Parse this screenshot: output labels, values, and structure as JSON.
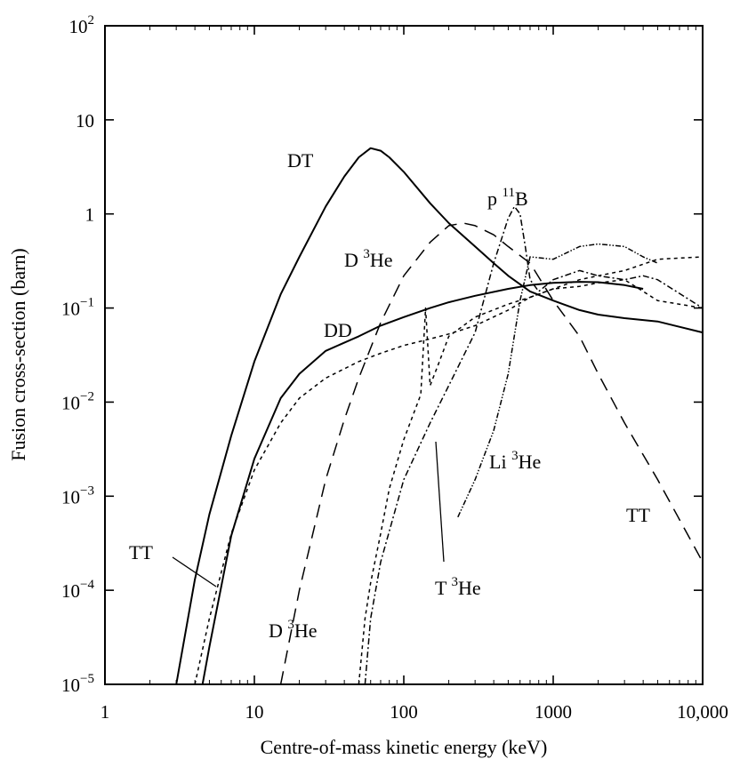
{
  "chart_data": {
    "type": "line",
    "xlabel": "Centre-of-mass kinetic energy (keV)",
    "ylabel": "Fusion cross-section (barn)",
    "xscale": "log",
    "yscale": "log",
    "xlim": [
      1,
      10000
    ],
    "ylim": [
      1e-05,
      100
    ],
    "grid": false,
    "x_ticks": [
      {
        "value": 1,
        "label": "1"
      },
      {
        "value": 10,
        "label": "10"
      },
      {
        "value": 100,
        "label": "100"
      },
      {
        "value": 1000,
        "label": "1000"
      },
      {
        "value": 10000,
        "label": "10,000"
      }
    ],
    "y_ticks": [
      {
        "value": 1e-05,
        "base": "10",
        "exp": "−5"
      },
      {
        "value": 0.0001,
        "base": "10",
        "exp": "−4"
      },
      {
        "value": 0.001,
        "base": "10",
        "exp": "−3"
      },
      {
        "value": 0.01,
        "base": "10",
        "exp": "−2"
      },
      {
        "value": 0.1,
        "base": "10",
        "exp": "−1"
      },
      {
        "value": 1,
        "base": "1",
        "exp": ""
      },
      {
        "value": 10,
        "base": "10",
        "exp": ""
      },
      {
        "value": 100,
        "base": "10",
        "exp": "2"
      }
    ],
    "series": [
      {
        "name": "DT",
        "style": "solid",
        "x": [
          3,
          4,
          5,
          7,
          10,
          15,
          20,
          30,
          40,
          50,
          60,
          70,
          80,
          100,
          150,
          200,
          300,
          400,
          500,
          700,
          1000,
          1500,
          2000,
          3000,
          5000,
          10000
        ],
        "y": [
          1e-05,
          0.00013,
          0.00064,
          0.0044,
          0.027,
          0.14,
          0.35,
          1.2,
          2.5,
          4.0,
          5.0,
          4.7,
          4.0,
          2.8,
          1.3,
          0.8,
          0.45,
          0.3,
          0.22,
          0.15,
          0.12,
          0.095,
          0.085,
          0.078,
          0.072,
          0.055
        ]
      },
      {
        "name": "DD",
        "style": "solid",
        "x": [
          4.5,
          5,
          7,
          10,
          15,
          20,
          30,
          50,
          70,
          100,
          150,
          200,
          300,
          500,
          700,
          1000,
          1500,
          2000,
          3000,
          4000
        ],
        "y": [
          1e-05,
          2.5e-05,
          0.00038,
          0.0025,
          0.011,
          0.02,
          0.035,
          0.05,
          0.065,
          0.08,
          0.1,
          0.115,
          0.135,
          0.16,
          0.175,
          0.185,
          0.19,
          0.188,
          0.175,
          0.16
        ]
      },
      {
        "name": "TT",
        "style": "short-dash",
        "x": [
          4,
          5,
          7,
          10,
          15,
          20,
          30,
          50,
          70,
          100,
          150,
          200,
          300,
          500,
          700,
          1000,
          1500,
          2000,
          3000,
          5000,
          10000
        ],
        "y": [
          1e-05,
          5e-05,
          0.0004,
          0.0019,
          0.006,
          0.011,
          0.018,
          0.027,
          0.033,
          0.04,
          0.047,
          0.053,
          0.065,
          0.095,
          0.13,
          0.16,
          0.2,
          0.22,
          0.25,
          0.33,
          0.35
        ]
      },
      {
        "name": "D 3He",
        "style": "long-dash",
        "x": [
          15,
          20,
          30,
          40,
          50,
          70,
          100,
          150,
          200,
          250,
          300,
          400,
          500,
          700,
          1000,
          1500,
          2000,
          3000,
          5000,
          10000
        ],
        "y": [
          1e-05,
          0.0001,
          0.0015,
          0.0065,
          0.018,
          0.07,
          0.22,
          0.5,
          0.75,
          0.8,
          0.75,
          0.6,
          0.45,
          0.3,
          0.12,
          0.05,
          0.02,
          0.006,
          0.0015,
          0.0002
        ]
      },
      {
        "name": "T 3He",
        "style": "short-dash",
        "x": [
          50,
          55,
          60,
          70,
          80,
          100,
          130,
          140,
          150,
          170,
          200,
          300,
          500,
          700,
          1000,
          1500,
          2000,
          3000,
          5000,
          10000
        ],
        "y": [
          1e-05,
          5e-05,
          0.00012,
          0.0004,
          0.0012,
          0.004,
          0.012,
          0.1,
          0.015,
          0.025,
          0.05,
          0.08,
          0.11,
          0.13,
          0.16,
          0.17,
          0.185,
          0.2,
          0.12,
          0.1
        ]
      },
      {
        "name": "p 11B",
        "style": "dash-dot",
        "x": [
          55,
          60,
          70,
          100,
          150,
          200,
          300,
          400,
          500,
          550,
          600,
          650,
          700,
          800,
          1000,
          1500,
          2000,
          3000,
          4000,
          5000,
          10000
        ],
        "y": [
          1e-05,
          5e-05,
          0.0002,
          0.0015,
          0.006,
          0.015,
          0.055,
          0.3,
          0.9,
          1.2,
          1.0,
          0.45,
          0.2,
          0.15,
          0.2,
          0.25,
          0.22,
          0.2,
          0.22,
          0.2,
          0.1
        ]
      },
      {
        "name": "Li 3He",
        "style": "dash-dot-dot",
        "x": [
          230,
          300,
          400,
          500,
          600,
          700,
          1000,
          1500,
          2000,
          3000,
          4000,
          5000
        ],
        "y": [
          0.0006,
          0.0015,
          0.005,
          0.02,
          0.12,
          0.35,
          0.33,
          0.45,
          0.48,
          0.45,
          0.35,
          0.3
        ]
      }
    ],
    "annotations": [
      {
        "text": "DT"
      },
      {
        "text": "DD"
      },
      {
        "text": "TT"
      },
      {
        "text": "TT"
      },
      {
        "base": "D ",
        "sup": "3",
        "rest": "He"
      },
      {
        "base": "D ",
        "sup": "3",
        "rest": "He"
      },
      {
        "base": "T ",
        "sup": "3",
        "rest": "He"
      },
      {
        "base": "p ",
        "sup": "11",
        "rest": "B"
      },
      {
        "base": "Li ",
        "sup": "3",
        "rest": "He"
      }
    ]
  }
}
